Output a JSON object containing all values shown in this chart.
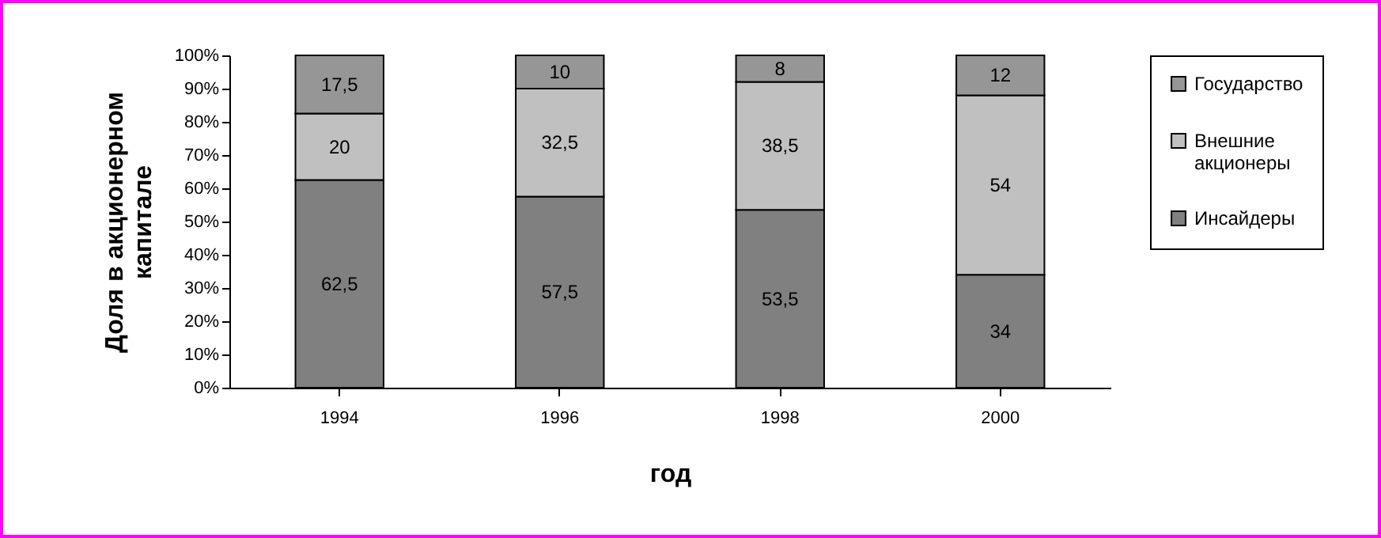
{
  "chart_data": {
    "type": "bar",
    "stacked": true,
    "xlabel": "год",
    "ylabel": "Доля в акционерном капитале",
    "categories": [
      "1994",
      "1996",
      "1998",
      "2000"
    ],
    "series": [
      {
        "name": "Инсайдеры",
        "color": "#808080",
        "values": [
          62.5,
          57.5,
          53.5,
          34
        ],
        "value_labels": [
          "62,5",
          "57,5",
          "53,5",
          "34"
        ]
      },
      {
        "name": "Внешние акционеры",
        "color": "#c0c0c0",
        "values": [
          20,
          32.5,
          38.5,
          54
        ],
        "value_labels": [
          "20",
          "32,5",
          "38,5",
          "54"
        ]
      },
      {
        "name": "Государство",
        "color": "#969696",
        "values": [
          17.5,
          10,
          8,
          12
        ],
        "value_labels": [
          "17,5",
          "10",
          "8",
          "12"
        ]
      }
    ],
    "ylim": [
      0,
      100
    ],
    "yticks": [
      {
        "value": 0,
        "label": "0%"
      },
      {
        "value": 10,
        "label": "10%"
      },
      {
        "value": 20,
        "label": "20%"
      },
      {
        "value": 30,
        "label": "30%"
      },
      {
        "value": 40,
        "label": "40%"
      },
      {
        "value": 50,
        "label": "50%"
      },
      {
        "value": 60,
        "label": "60%"
      },
      {
        "value": 70,
        "label": "70%"
      },
      {
        "value": 80,
        "label": "80%"
      },
      {
        "value": 90,
        "label": "90%"
      },
      {
        "value": 100,
        "label": "100%"
      }
    ],
    "legend": "right"
  }
}
